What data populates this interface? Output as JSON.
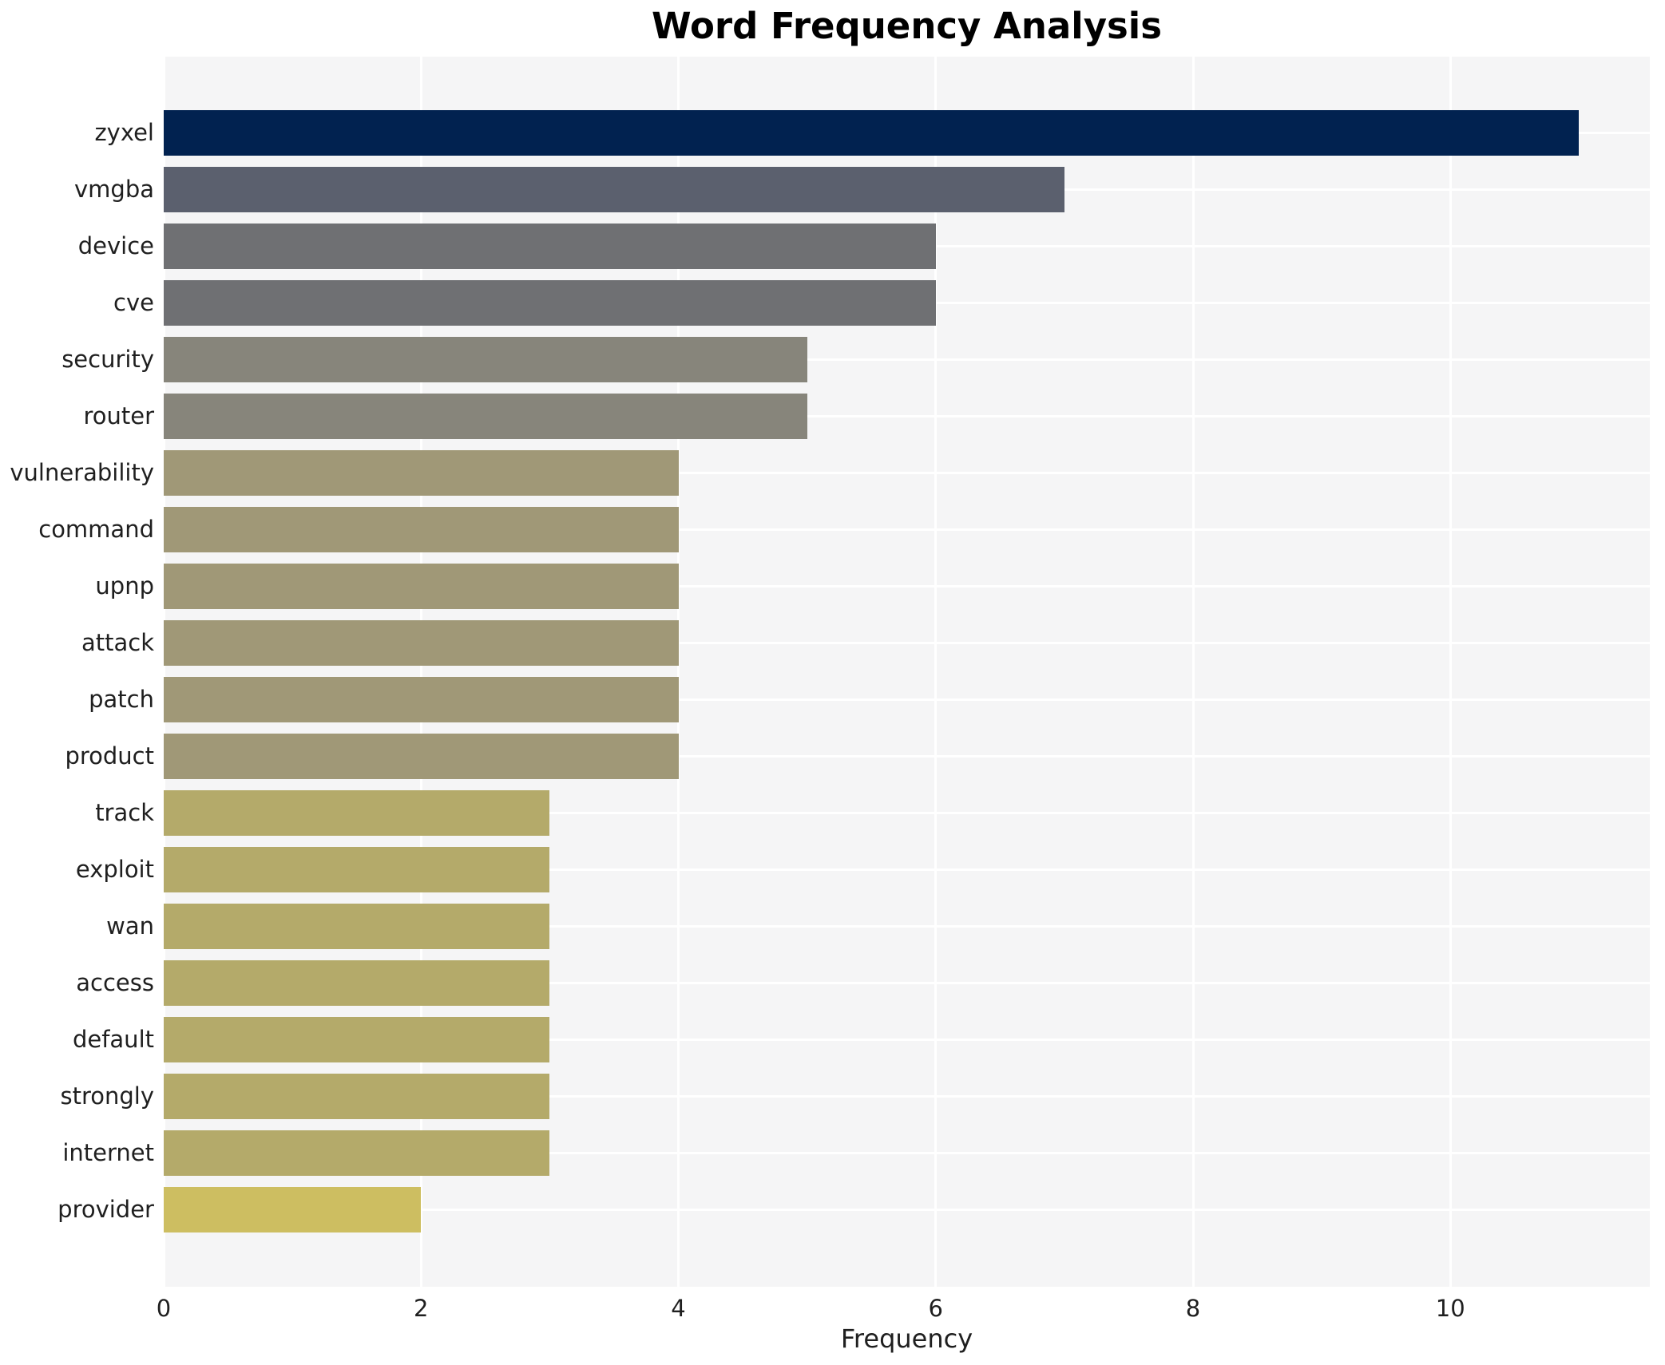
{
  "title": "Word Frequency Analysis",
  "chart_data": {
    "type": "bar",
    "orientation": "horizontal",
    "title": "Word Frequency Analysis",
    "xlabel": "Frequency",
    "ylabel": "",
    "categories": [
      "zyxel",
      "vmgba",
      "device",
      "cve",
      "security",
      "router",
      "vulnerability",
      "command",
      "upnp",
      "attack",
      "patch",
      "product",
      "track",
      "exploit",
      "wan",
      "access",
      "default",
      "strongly",
      "internet",
      "provider"
    ],
    "values": [
      11,
      7,
      6,
      6,
      5,
      5,
      4,
      4,
      4,
      4,
      4,
      4,
      3,
      3,
      3,
      3,
      3,
      3,
      3,
      2
    ],
    "bar_colors": [
      "#012250",
      "#5b606e",
      "#6f7073",
      "#6f7073",
      "#87857b",
      "#87857b",
      "#a09877",
      "#a09877",
      "#a09877",
      "#a09877",
      "#a09877",
      "#a09877",
      "#b4aa6a",
      "#b4aa6a",
      "#b4aa6a",
      "#b4aa6a",
      "#b4aa6a",
      "#b4aa6a",
      "#b4aa6a",
      "#cdbe61"
    ],
    "xticks": [
      0,
      2,
      4,
      6,
      8,
      10
    ],
    "xlim": [
      0,
      11.55
    ],
    "grid": true,
    "legend_position": "none",
    "plot_bg_color": "#f5f5f6",
    "grid_color": "#ffffff",
    "text_color": "#1f1f1f"
  }
}
